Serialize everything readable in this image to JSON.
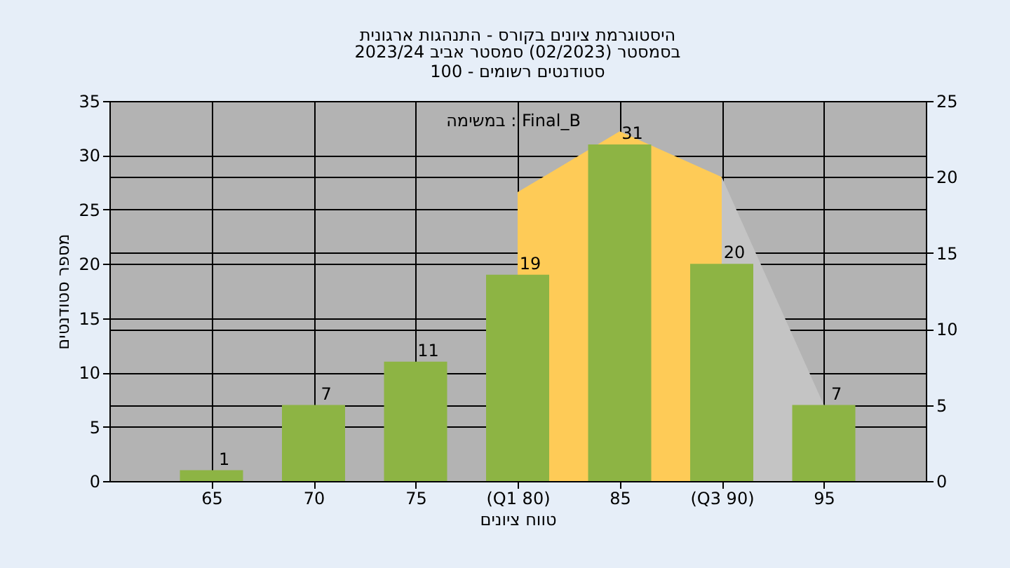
{
  "chart_data": {
    "type": "bar",
    "title": "היסטוגרמת ציונים בקורס - התנהגות ארגונית",
    "subtitle": "בסמסטר (02/2023) סמסטר אביב 2023/24\nסטודנטים רשומים - 100",
    "xlabel": "טווח ציונים",
    "ylabel": "מספר סטודנטים",
    "categories": [
      "65",
      "70",
      "75",
      "(Q1 80)",
      "85",
      "(Q3 90)",
      "95"
    ],
    "series": [
      {
        "type": "area",
        "axis": "y2",
        "color": "#c4c4c4",
        "values": [
          null,
          null,
          null,
          null,
          null,
          20,
          5
        ]
      },
      {
        "type": "area",
        "axis": "y2",
        "color": "#fecb57",
        "values": [
          null,
          null,
          null,
          19,
          23,
          20,
          null
        ]
      },
      {
        "color": "#8db444",
        "values": [
          1,
          7,
          11,
          19,
          31,
          20,
          7
        ],
        "value_labels": [
          "1",
          "7",
          "11",
          "19",
          "31",
          "20",
          "7"
        ]
      }
    ],
    "ylim": [
      0,
      35
    ],
    "yticks": [
      0,
      5,
      10,
      15,
      20,
      25,
      30,
      35
    ],
    "y2lim": [
      0,
      25
    ],
    "y2ticks": [
      0,
      5,
      10,
      15,
      20,
      25
    ],
    "grid": true,
    "annotations": [
      "במשימה : Final_B"
    ]
  }
}
